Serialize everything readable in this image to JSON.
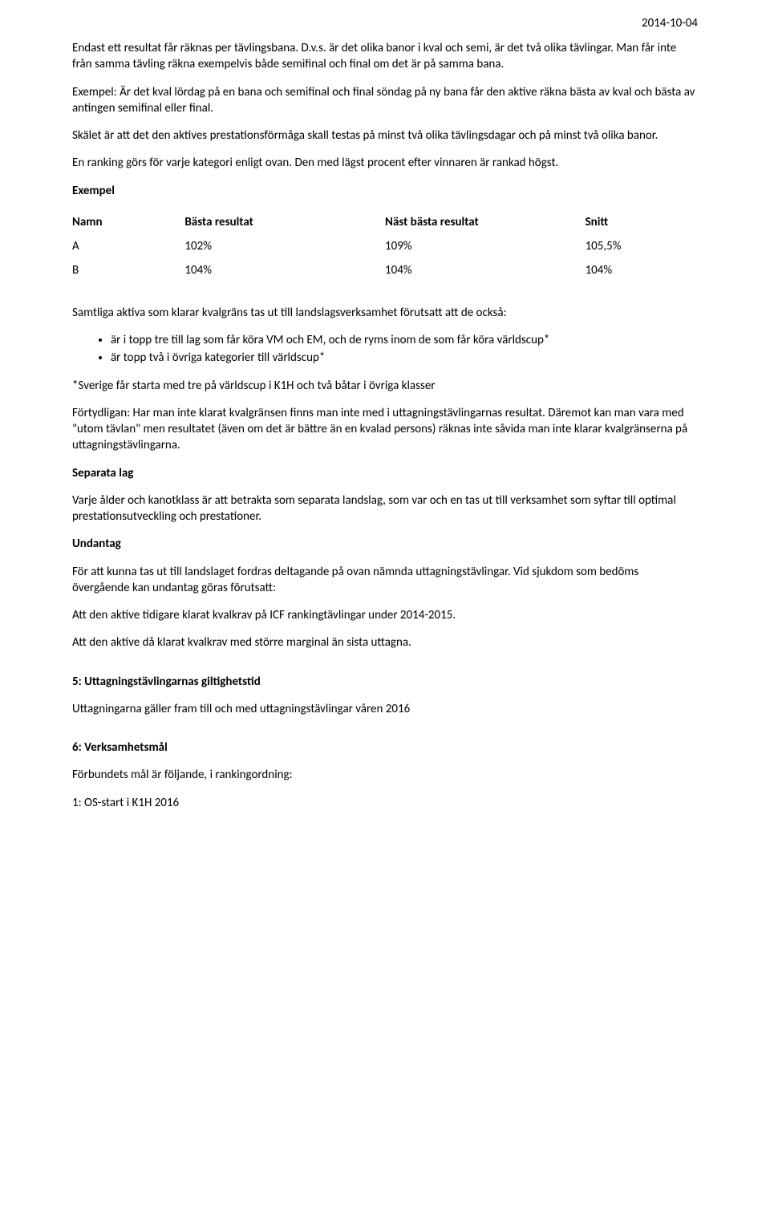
{
  "header": {
    "date": "2014-10-04"
  },
  "para1": "Endast ett resultat får räknas per tävlingsbana. D.v.s. är det olika banor i kval och semi, är det två olika tävlingar. Man får inte från samma tävling räkna exempelvis både semifinal och final om det är på samma bana.",
  "para2": "Exempel: Är det kval lördag på en bana och semifinal och final söndag på ny bana får den aktive räkna bästa av kval och bästa av antingen semifinal eller final.",
  "para3": "Skälet är att det den aktives prestationsförmåga skall testas på minst två olika tävlingsdagar och på minst två olika banor.",
  "para4": "En ranking görs för varje kategori enligt ovan. Den med lägst procent efter vinnaren är rankad högst.",
  "exempel_label": "Exempel",
  "table": {
    "headers": {
      "name": "Namn",
      "best": "Bästa resultat",
      "next": "Näst bästa resultat",
      "avg": "Snitt"
    },
    "rows": [
      {
        "name": "A",
        "best": "102%",
        "next": "109%",
        "avg": "105,5%"
      },
      {
        "name": "B",
        "best": "104%",
        "next": "104%",
        "avg": "104%"
      }
    ]
  },
  "para5": "Samtliga aktiva som klarar kvalgräns tas ut till landslagsverksamhet förutsatt att de också:",
  "bullets": [
    "är i topp tre till lag som får köra VM och EM, och de ryms inom de som får köra världscup*",
    "är topp två i övriga kategorier till världscup*"
  ],
  "para6": "*Sverige får starta med tre på världscup i K1H och två båtar i övriga klasser",
  "para7": "Förtydligan: Har man inte klarat kvalgränsen finns man inte med i uttagningstävlingarnas resultat. Däremot kan man vara med \"utom tävlan\" men resultatet (även om det är bättre än en kvalad persons) räknas inte såvida man inte klarar kvalgränserna på uttagningstävlingarna.",
  "heading_separata": "Separata lag",
  "para8": "Varje ålder och kanotklass är att betrakta som separata landslag, som var och en tas ut till verksamhet som syftar till optimal prestationsutveckling och prestationer.",
  "heading_undantag": "Undantag",
  "para9": "För att kunna tas ut till landslaget fordras deltagande på ovan nämnda uttagningstävlingar. Vid sjukdom som bedöms övergående kan undantag göras förutsatt:",
  "para10": "Att den aktive tidigare klarat kvalkrav på ICF rankingtävlingar under 2014-2015.",
  "para11": "Att den aktive då klarat kvalkrav med större marginal än sista uttagna.",
  "heading_5": "5: Uttagningstävlingarnas giltighetstid",
  "para12": "Uttagningarna gäller fram till och med uttagningstävlingar våren 2016",
  "heading_6": "6: Verksamhetsmål",
  "para13": "Förbundets mål är följande, i rankingordning:",
  "para14": "1: OS-start i K1H 2016"
}
